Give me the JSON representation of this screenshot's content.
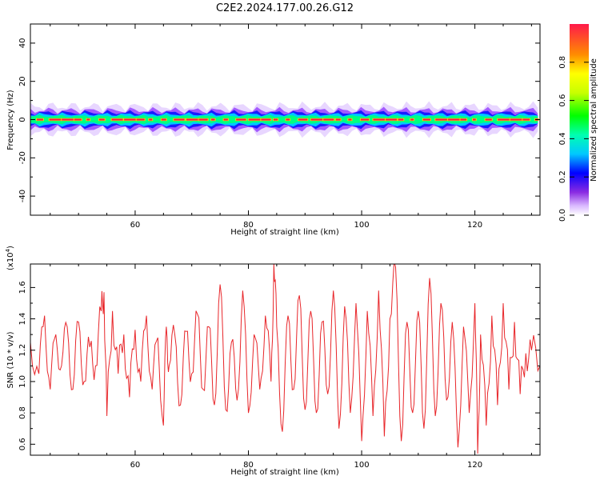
{
  "title": "C2E2.2024.177.00.26.G12",
  "colors": {
    "line": "#e8262a",
    "frame": "#000000",
    "background": "#ffffff"
  },
  "chart_data": [
    {
      "type": "heatmap",
      "xlabel": "Height of straight line (km)",
      "ylabel": "Frequency (Hz)",
      "xlim": [
        41.5,
        131.5
      ],
      "ylim": [
        -50,
        50
      ],
      "xticks": [
        60,
        80,
        100,
        120
      ],
      "yticks": [
        -40,
        -20,
        0,
        20,
        40
      ],
      "colorbar": {
        "label": "Normalized spectral amplitude",
        "range": [
          0,
          1
        ],
        "ticks": [
          0.0,
          0.2,
          0.4,
          0.6,
          0.8
        ]
      },
      "description_values": {
        "peak_frequency_hz": 0,
        "band_halfwidth_hz": 3
      }
    },
    {
      "type": "line",
      "xlabel": "Height of straight line (km)",
      "ylabel": "SNR (10 * v/v)",
      "scale_label": "(x10",
      "scale_exp": "4",
      "xlim": [
        41.5,
        131.5
      ],
      "ylim": [
        0.53,
        1.75
      ],
      "xticks": [
        60,
        80,
        100,
        120
      ],
      "yticks": [
        0.6,
        0.8,
        1.0,
        1.2,
        1.4,
        1.6
      ],
      "series": [
        {
          "x": [
            41.5,
            43.0,
            44.0,
            45.0,
            46.0,
            47.0,
            48.0,
            49.0,
            50.0,
            51.0,
            52.0,
            53.0,
            54.0,
            54.5,
            55.0,
            56.0,
            57.0,
            58.0,
            59.0,
            60.0,
            61.0,
            62.0,
            63.0,
            64.0,
            65.0,
            65.5,
            66.0,
            67.0,
            68.0,
            69.0,
            70.0,
            71.0,
            72.0,
            73.0,
            74.0,
            75.0,
            76.0,
            77.0,
            78.0,
            79.0,
            80.0,
            81.0,
            82.0,
            83.0,
            84.0,
            84.5,
            85.0,
            86.0,
            87.0,
            88.0,
            89.0,
            90.0,
            91.0,
            92.0,
            93.0,
            94.0,
            95.0,
            96.0,
            97.0,
            98.0,
            99.0,
            100.0,
            101.0,
            102.0,
            103.0,
            104.0,
            105.0,
            106.0,
            107.0,
            108.0,
            109.0,
            110.0,
            111.0,
            112.0,
            113.0,
            114.0,
            115.0,
            116.0,
            117.0,
            118.0,
            119.0,
            120.0,
            120.5,
            121.0,
            122.0,
            123.0,
            124.0,
            125.0,
            126.0,
            127.0,
            128.0,
            129.0,
            130.0,
            131.5
          ],
          "values": [
            1.25,
            1.05,
            1.42,
            0.95,
            1.3,
            1.1,
            1.35,
            0.95,
            1.38,
            1.0,
            1.22,
            1.1,
            1.45,
            1.57,
            0.78,
            1.45,
            1.05,
            1.3,
            0.9,
            1.33,
            1.0,
            1.42,
            0.95,
            1.28,
            0.72,
            1.35,
            1.1,
            1.3,
            0.85,
            1.32,
            1.05,
            1.43,
            0.95,
            1.35,
            0.85,
            1.62,
            0.82,
            1.25,
            0.88,
            1.58,
            0.8,
            1.3,
            0.95,
            1.42,
            1.0,
            1.75,
            1.35,
            0.68,
            1.42,
            0.95,
            1.55,
            0.82,
            1.45,
            0.8,
            1.38,
            0.92,
            1.58,
            0.7,
            1.48,
            0.8,
            1.5,
            0.62,
            1.45,
            0.78,
            1.58,
            0.65,
            1.4,
            1.73,
            0.62,
            1.38,
            0.8,
            1.45,
            0.7,
            1.66,
            0.78,
            1.5,
            0.88,
            1.38,
            0.58,
            1.35,
            0.8,
            1.5,
            0.54,
            1.3,
            0.72,
            1.42,
            0.85,
            1.5,
            0.95,
            1.38,
            0.92,
            1.18,
            1.2,
            1.1
          ]
        }
      ]
    }
  ]
}
